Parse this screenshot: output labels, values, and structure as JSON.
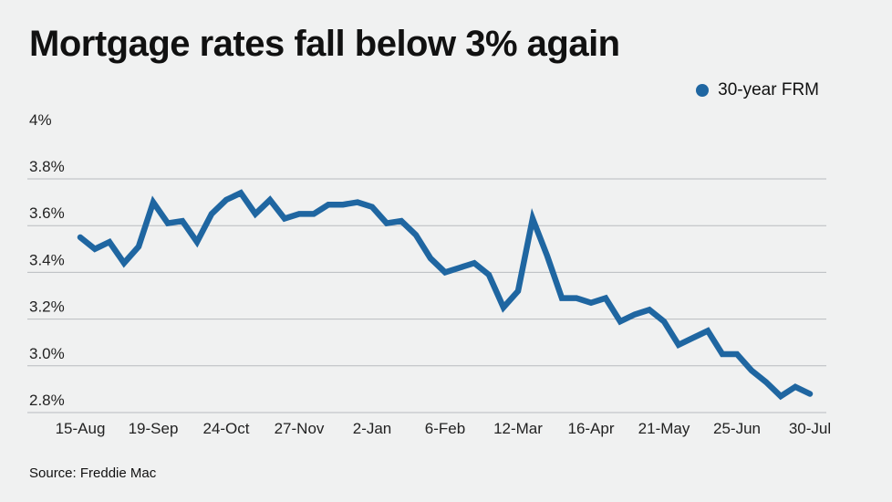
{
  "title": "Mortgage rates fall below 3% again",
  "source": "Source: Freddie Mac",
  "colors": {
    "line": "#1f66a1",
    "grid": "#b9bcbf",
    "background": "#f0f1f1"
  },
  "chart_data": {
    "type": "line",
    "title": "Mortgage rates fall below 3% again",
    "xlabel": "",
    "ylabel": "",
    "ylim": [
      2.8,
      4.0
    ],
    "yticks": [
      4.0,
      3.8,
      3.6,
      3.4,
      3.2,
      3.0,
      2.8
    ],
    "ytick_labels": [
      "4%",
      "3.8%",
      "3.6%",
      "3.4%",
      "3.2%",
      "3.0%",
      "2.8%"
    ],
    "xtick_labels": [
      "15-Aug",
      "19-Sep",
      "24-Oct",
      "27-Nov",
      "2-Jan",
      "6-Feb",
      "12-Mar",
      "16-Apr",
      "21-May",
      "25-Jun",
      "30-Jul"
    ],
    "xtick_index": [
      0,
      5,
      10,
      15,
      20,
      25,
      30,
      35,
      40,
      45,
      50
    ],
    "legend_position": "top-right",
    "series": [
      {
        "name": "30-year FRM",
        "values": [
          3.55,
          3.5,
          3.53,
          3.44,
          3.51,
          3.7,
          3.61,
          3.62,
          3.53,
          3.65,
          3.71,
          3.74,
          3.65,
          3.71,
          3.63,
          3.65,
          3.65,
          3.69,
          3.69,
          3.7,
          3.68,
          3.61,
          3.62,
          3.56,
          3.46,
          3.4,
          3.42,
          3.44,
          3.39,
          3.25,
          3.32,
          3.63,
          3.47,
          3.29,
          3.29,
          3.27,
          3.29,
          3.19,
          3.22,
          3.24,
          3.19,
          3.09,
          3.12,
          3.15,
          3.05,
          3.05,
          2.98,
          2.93,
          2.87,
          2.91,
          2.88
        ]
      }
    ]
  }
}
